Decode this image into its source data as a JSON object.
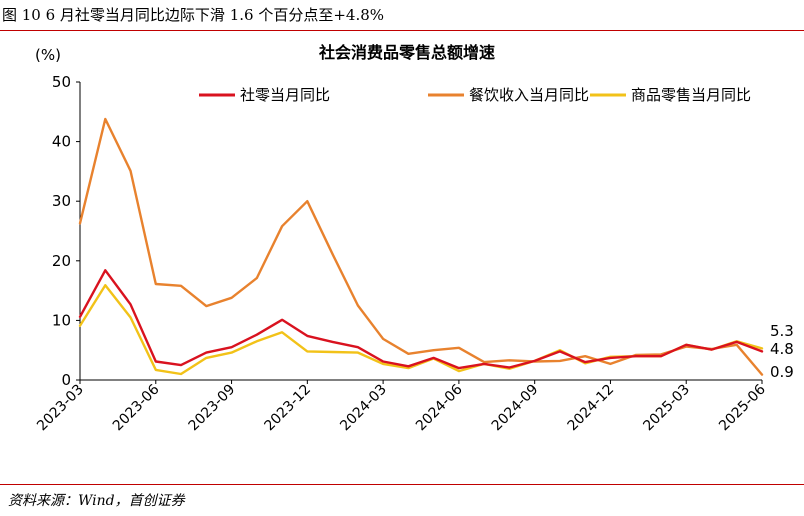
{
  "figure_caption": "图 10 6 月社零当月同比边际下滑 1.6 个百分点至+4.8%",
  "source": "资料来源：Wind，首创证券",
  "colors": {
    "rule": "#c00000",
    "axis": "#000000"
  },
  "chart_data": {
    "type": "line",
    "title": "社会消费品零售总额增速",
    "unit_label": "(%)",
    "xlabel": "",
    "ylabel": "",
    "ylim": [
      0,
      50
    ],
    "yticks": [
      "0",
      "10",
      "20",
      "30",
      "40",
      "50"
    ],
    "grid": false,
    "legend_position": "top",
    "x": [
      "2023-03",
      "2023-04",
      "2023-05",
      "2023-06",
      "2023-07",
      "2023-08",
      "2023-09",
      "2023-10",
      "2023-11",
      "2023-12",
      "2024-01",
      "2024-02",
      "2024-03",
      "2024-04",
      "2024-05",
      "2024-06",
      "2024-07",
      "2024-08",
      "2024-09",
      "2024-10",
      "2024-11",
      "2024-12",
      "2025-01",
      "2025-02",
      "2025-03",
      "2025-04",
      "2025-05",
      "2025-06"
    ],
    "x_tick_labels": [
      "2023-03",
      "2023-06",
      "2023-09",
      "2023-12",
      "2024-03",
      "2024-06",
      "2024-09",
      "2024-12",
      "2025-03",
      "2025-06"
    ],
    "series": [
      {
        "name": "社零当月同比",
        "color": "#d9121f",
        "values": [
          10.6,
          18.4,
          12.7,
          3.1,
          2.5,
          4.6,
          5.5,
          7.6,
          10.1,
          7.4,
          6.4,
          5.5,
          3.1,
          2.3,
          3.7,
          2.0,
          2.7,
          2.1,
          3.2,
          4.8,
          3.0,
          3.7,
          4.0,
          4.0,
          5.9,
          5.1,
          6.4,
          4.8
        ]
      },
      {
        "name": "餐饮收入当月同比",
        "color": "#e8822e",
        "values": [
          26.3,
          43.8,
          35.1,
          16.1,
          15.8,
          12.4,
          13.8,
          17.1,
          25.8,
          30.0,
          21.1,
          12.5,
          6.9,
          4.4,
          5.0,
          5.4,
          3.0,
          3.3,
          3.1,
          3.2,
          4.0,
          2.7,
          4.2,
          4.3,
          5.6,
          5.2,
          5.9,
          0.9
        ]
      },
      {
        "name": "商品零售当月同比",
        "color": "#f2c218",
        "values": [
          9.1,
          15.9,
          10.5,
          1.7,
          1.0,
          3.7,
          4.6,
          6.5,
          8.0,
          4.8,
          4.7,
          4.6,
          2.7,
          2.0,
          3.6,
          1.5,
          2.7,
          1.9,
          3.2,
          5.0,
          2.8,
          3.9,
          4.0,
          4.0,
          5.9,
          5.1,
          6.5,
          5.3
        ]
      }
    ],
    "end_labels": [
      "5.3",
      "4.8",
      "0.9"
    ]
  }
}
